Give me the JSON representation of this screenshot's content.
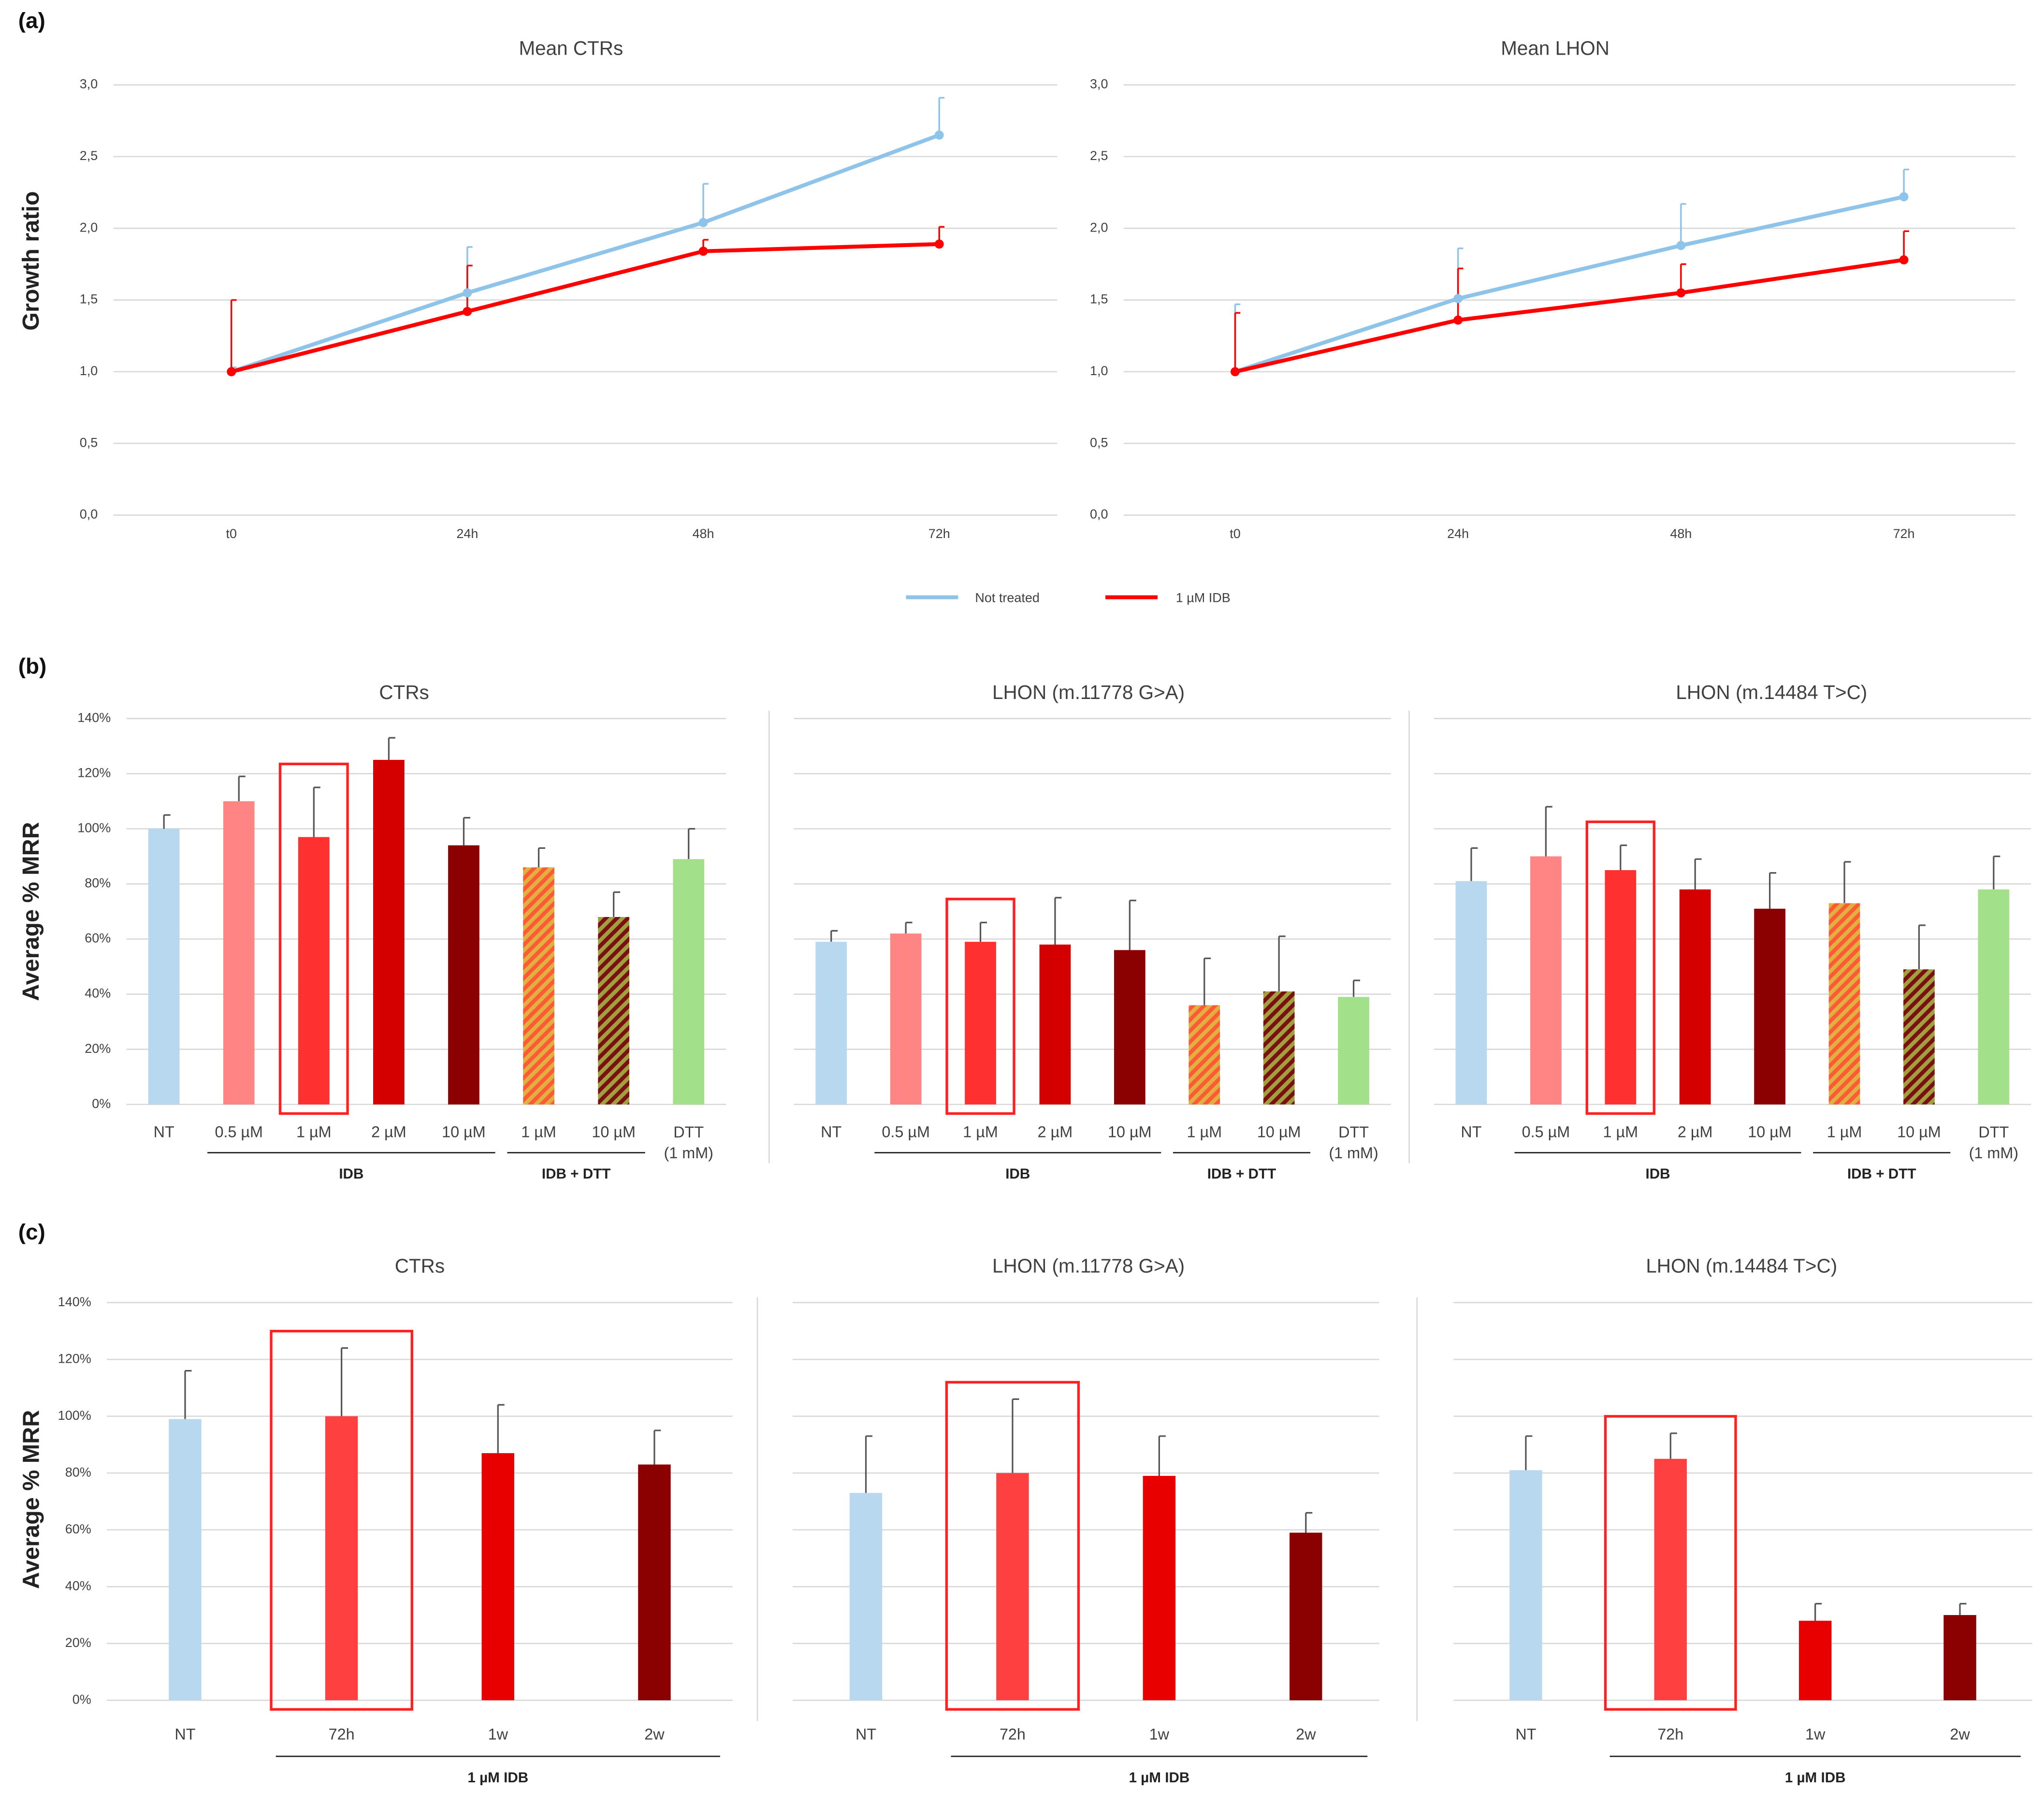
{
  "panel_labels": [
    "(a)",
    "(b)",
    "(c)"
  ],
  "chart_data": [
    {
      "type": "line",
      "title": "Mean CTRs",
      "y_label": "Growth ratio",
      "categories": [
        "t0",
        "24h",
        "48h",
        "72h"
      ],
      "series": [
        {
          "name": "Not treated",
          "color": "#8ec4ea",
          "values": [
            1.0,
            1.55,
            2.04,
            2.65
          ],
          "errors": [
            0.03,
            0.32,
            0.27,
            0.26
          ]
        },
        {
          "name": "1 µM IDB",
          "color": "#ff0000",
          "values": [
            1.0,
            1.42,
            1.84,
            1.89
          ],
          "errors": [
            0.5,
            0.32,
            0.08,
            0.12
          ]
        }
      ],
      "ylim": [
        0,
        3
      ],
      "grid": true,
      "yticks": [
        {
          "value": 0,
          "label": "0,0"
        },
        {
          "value": 0.5,
          "label": "0,5"
        },
        {
          "value": 1,
          "label": "1,0"
        },
        {
          "value": 1.5,
          "label": "1,5"
        },
        {
          "value": 2,
          "label": "2,0"
        },
        {
          "value": 2.5,
          "label": "2,5"
        },
        {
          "value": 3,
          "label": "3,0"
        }
      ]
    },
    {
      "type": "line",
      "title": "Mean LHON",
      "categories": [
        "t0",
        "24h",
        "48h",
        "72h"
      ],
      "series": [
        {
          "color": "#8ec4ea",
          "values": [
            1.0,
            1.51,
            1.88,
            2.22
          ],
          "errors": [
            0.47,
            0.35,
            0.29,
            0.19
          ]
        },
        {
          "color": "#ff0000",
          "values": [
            1.0,
            1.36,
            1.55,
            1.78
          ],
          "errors": [
            0.41,
            0.36,
            0.2,
            0.2
          ]
        }
      ],
      "ylim": [
        0,
        3
      ],
      "grid": true,
      "yticks": [
        {
          "value": 0,
          "label": "0,0"
        },
        {
          "value": 0.5,
          "label": "0,5"
        },
        {
          "value": 1,
          "label": "1,0"
        },
        {
          "value": 1.5,
          "label": "1,5"
        },
        {
          "value": 2,
          "label": "2,0"
        },
        {
          "value": 2.5,
          "label": "2,5"
        },
        {
          "value": 3,
          "label": "3,0"
        }
      ]
    },
    {
      "type": "bar",
      "title": "CTRs",
      "y_label": "Average % MRR",
      "categories": [
        "NT",
        "0.5 µM",
        "1 µM",
        "2 µM",
        "10 µM",
        "1 µM",
        "10 µM",
        "DTT (1 mM)"
      ],
      "groups": [
        "IDB",
        "IDB + DTT"
      ],
      "values": [
        100,
        110,
        97,
        125,
        94,
        86,
        68,
        89
      ],
      "errors": [
        5,
        9,
        18,
        8,
        10,
        7,
        9,
        11
      ],
      "colors": [
        "#b8d8ef",
        "#ff8585",
        "#ff3030",
        "#d40000",
        "#8b0000",
        "#ff5a36",
        "#7a1010",
        "#a3e08a"
      ],
      "hatch_colors": [
        null,
        null,
        null,
        null,
        null,
        "#e0b040",
        "#a0a040",
        null
      ],
      "highlight": 2,
      "ylim": [
        0,
        140
      ],
      "grid": true,
      "yticks": [
        {
          "value": 0,
          "label": "0%"
        },
        {
          "value": 20,
          "label": "20%"
        },
        {
          "value": 40,
          "label": "40%"
        },
        {
          "value": 60,
          "label": "60%"
        },
        {
          "value": 80,
          "label": "80%"
        },
        {
          "value": 100,
          "label": "100%"
        },
        {
          "value": 120,
          "label": "120%"
        },
        {
          "value": 140,
          "label": "140%"
        }
      ]
    },
    {
      "type": "bar",
      "title": "LHON (m.11778 G>A)",
      "categories": [
        "NT",
        "0.5 µM",
        "1 µM",
        "2 µM",
        "10 µM",
        "1 µM",
        "10 µM",
        "DTT (1 mM)"
      ],
      "groups": [
        "IDB",
        "IDB + DTT"
      ],
      "values": [
        59,
        62,
        59,
        58,
        56,
        36,
        41,
        39
      ],
      "errors": [
        4,
        4,
        7,
        17,
        18,
        17,
        20,
        6
      ],
      "colors": [
        "#b8d8ef",
        "#ff8585",
        "#ff3030",
        "#d40000",
        "#8b0000",
        "#ff5a36",
        "#7a1010",
        "#a3e08a"
      ],
      "hatch_colors": [
        null,
        null,
        null,
        null,
        null,
        "#e0b040",
        "#a0a040",
        null
      ],
      "highlight": 2,
      "ylim": [
        0,
        140
      ],
      "grid": true,
      "yticks": [
        0,
        20,
        40,
        60,
        80,
        100,
        120,
        140
      ]
    },
    {
      "type": "bar",
      "title": "LHON (m.14484 T>C)",
      "categories": [
        "NT",
        "0.5 µM",
        "1 µM",
        "2 µM",
        "10 µM",
        "1 µM",
        "10 µM",
        "DTT (1 mM)"
      ],
      "groups": [
        "IDB",
        "IDB + DTT"
      ],
      "values": [
        81,
        90,
        85,
        78,
        71,
        73,
        49,
        78
      ],
      "errors": [
        12,
        18,
        9,
        11,
        13,
        15,
        16,
        12
      ],
      "colors": [
        "#b8d8ef",
        "#ff8585",
        "#ff3030",
        "#d40000",
        "#8b0000",
        "#ff5a36",
        "#7a1010",
        "#a3e08a"
      ],
      "hatch_colors": [
        null,
        null,
        null,
        null,
        null,
        "#e0b040",
        "#a0a040",
        null
      ],
      "highlight": 2,
      "ylim": [
        0,
        140
      ],
      "grid": true,
      "yticks": [
        0,
        20,
        40,
        60,
        80,
        100,
        120,
        140
      ]
    },
    {
      "type": "bar",
      "title": "CTRs",
      "y_label": "Average % MRR",
      "categories": [
        "NT",
        "72h",
        "1w",
        "2w"
      ],
      "groups": [
        "1 µM IDB"
      ],
      "values": [
        99,
        100,
        87,
        83
      ],
      "errors": [
        17,
        24,
        17,
        12
      ],
      "colors": [
        "#b8d8ef",
        "#ff4040",
        "#e80000",
        "#8b0000"
      ],
      "highlight": 1,
      "ylim": [
        0,
        140
      ],
      "grid": true,
      "yticks": [
        {
          "value": 0,
          "label": "0%"
        },
        {
          "value": 20,
          "label": "20%"
        },
        {
          "value": 40,
          "label": "40%"
        },
        {
          "value": 60,
          "label": "60%"
        },
        {
          "value": 80,
          "label": "80%"
        },
        {
          "value": 100,
          "label": "100%"
        },
        {
          "value": 120,
          "label": "120%"
        },
        {
          "value": 140,
          "label": "140%"
        }
      ]
    },
    {
      "type": "bar",
      "title": "LHON (m.11778 G>A)",
      "categories": [
        "NT",
        "72h",
        "1w",
        "2w"
      ],
      "groups": [
        "1 µM IDB"
      ],
      "values": [
        73,
        80,
        79,
        59
      ],
      "errors": [
        20,
        26,
        14,
        7
      ],
      "colors": [
        "#b8d8ef",
        "#ff4040",
        "#e80000",
        "#8b0000"
      ],
      "highlight": 1,
      "ylim": [
        0,
        140
      ],
      "grid": true,
      "yticks": [
        0,
        20,
        40,
        60,
        80,
        100,
        120,
        140
      ]
    },
    {
      "type": "bar",
      "title": "LHON (m.14484 T>C)",
      "categories": [
        "NT",
        "72h",
        "1w",
        "2w"
      ],
      "groups": [
        "1 µM IDB"
      ],
      "values": [
        81,
        85,
        28,
        30
      ],
      "errors": [
        12,
        9,
        6,
        4
      ],
      "colors": [
        "#b8d8ef",
        "#ff4040",
        "#e80000",
        "#8b0000"
      ],
      "highlight": 1,
      "ylim": [
        0,
        140
      ],
      "grid": true,
      "yticks": [
        0,
        20,
        40,
        60,
        80,
        100,
        120,
        140
      ]
    }
  ]
}
